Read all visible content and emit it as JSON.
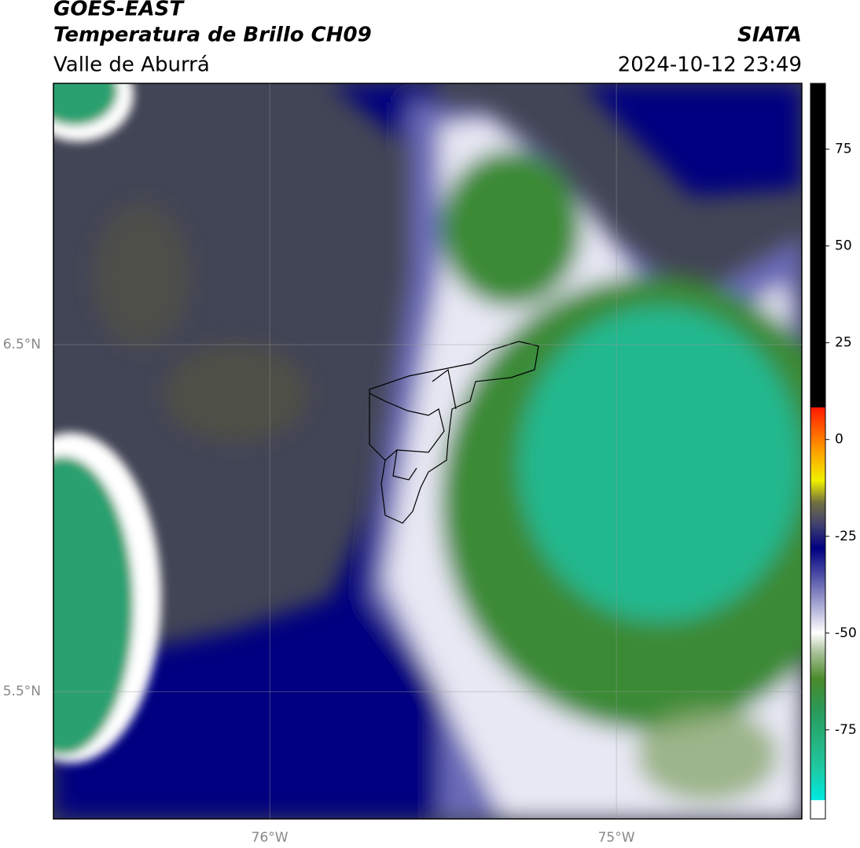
{
  "header": {
    "title": "GOES-EAST",
    "subtitle": "Temperatura de Brillo CH09",
    "region": "Valle de Aburrá",
    "source": "SIATA",
    "timestamp": "2024-10-12 23:49"
  },
  "map": {
    "lon_range": [
      -76.624,
      -74.465
    ],
    "lat_range": [
      5.133,
      7.253
    ],
    "lon_ticks": [
      {
        "value": -76,
        "label": "76°W"
      },
      {
        "value": -75,
        "label": "75°W"
      }
    ],
    "lat_ticks": [
      {
        "value": 6.5,
        "label": "6.5°N"
      },
      {
        "value": 5.5,
        "label": "5.5°N"
      }
    ]
  },
  "colorbar": {
    "range": [
      -98,
      92
    ],
    "ticks": [
      75,
      50,
      25,
      0,
      -25,
      -50,
      -75
    ]
  }
}
